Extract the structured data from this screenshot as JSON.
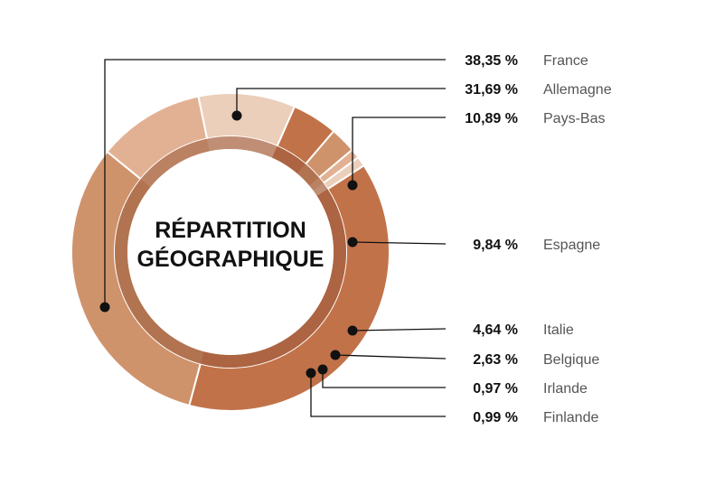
{
  "chart_data": {
    "type": "pie",
    "variant": "donut",
    "title_lines": [
      "RÉPARTITION",
      "GÉOGRAPHIQUE"
    ],
    "categories": [
      "France",
      "Allemagne",
      "Pays-Bas",
      "Espagne",
      "Italie",
      "Belgique",
      "Irlande",
      "Finlande"
    ],
    "values": [
      38.35,
      31.69,
      10.89,
      9.84,
      4.64,
      2.63,
      0.97,
      0.99
    ],
    "value_labels": [
      "38,35 %",
      "31,69 %",
      "10,89 %",
      "9,84 %",
      "4,64 %",
      "2,63 %",
      "0,97 %",
      "0,99 %"
    ],
    "colors": [
      "#c27249",
      "#cf936c",
      "#e2b193",
      "#ebcfba",
      "#c27249",
      "#cf936c",
      "#e2b193",
      "#ebcfba"
    ],
    "inner_ring_color": "#9a5a3c",
    "legend_placement": "right"
  }
}
